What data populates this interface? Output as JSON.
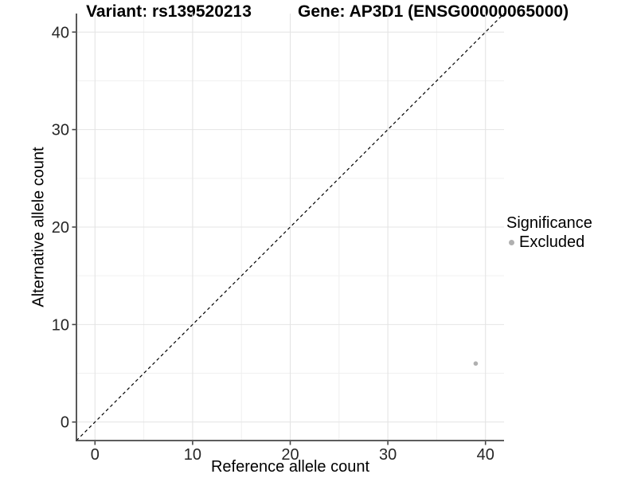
{
  "chart_data": {
    "type": "scatter",
    "title_left": "Variant: rs139520213",
    "title_right": "Gene: AP3D1 (ENSG00000065000)",
    "xlabel": "Reference allele count",
    "ylabel": "Alternative allele count",
    "xlim": [
      -1.9,
      41.9
    ],
    "ylim": [
      -1.9,
      41.9
    ],
    "xticks": [
      0,
      10,
      20,
      30,
      40
    ],
    "yticks": [
      0,
      10,
      20,
      30,
      40
    ],
    "minor_ticks_x": [
      5,
      15,
      25,
      35
    ],
    "minor_ticks_y": [
      5,
      15,
      25,
      35
    ],
    "grid": "major and minor gridlines, white panel, axis lines left and bottom only",
    "reference_line": {
      "type": "identity y=x",
      "style": "dashed",
      "color": "#000000"
    },
    "series": [
      {
        "name": "Excluded",
        "color": "#b0b0b0",
        "marker": "circle",
        "points": [
          {
            "x": 39,
            "y": 6
          }
        ]
      }
    ],
    "legend": {
      "title": "Significance",
      "position": "right",
      "entries": [
        {
          "label": "Excluded",
          "color": "#b0b0b0",
          "marker": "circle"
        }
      ]
    }
  },
  "colors": {
    "background": "#ffffff",
    "axis_line": "#464646",
    "tick_mark": "#464646",
    "tick_label": "#262626",
    "grid_major": "#e4e4e4",
    "grid_minor": "#f0f0f0",
    "point": "#b0b0b0"
  }
}
